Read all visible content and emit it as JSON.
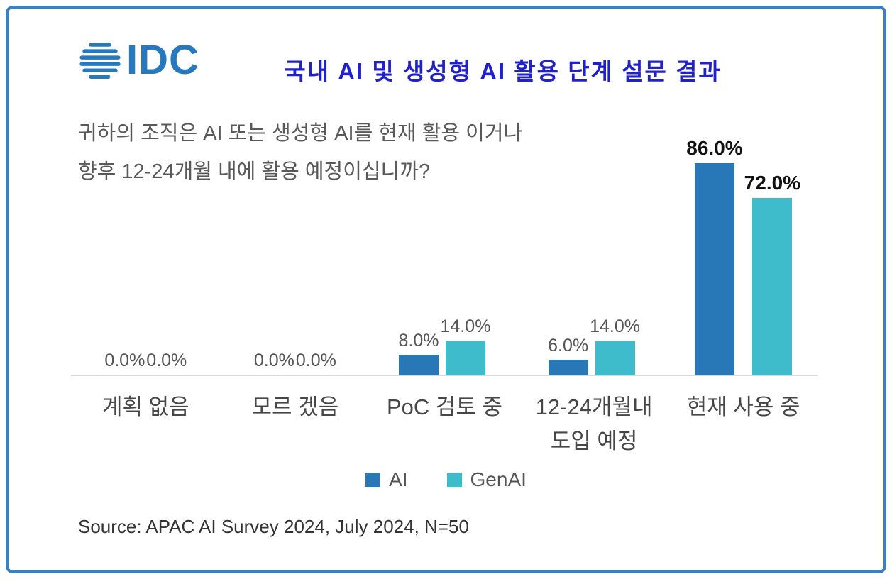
{
  "header": {
    "logo_text": "IDC",
    "title": "국내 AI 및 생성형 AI 활용 단계 설문 결과"
  },
  "question": {
    "line1": "귀하의 조직은 AI 또는 생성형 AI를 현재 활용 이거나",
    "line2": "향후 12-24개월 내에 활용 예정이십니까?"
  },
  "chart_data": {
    "type": "bar",
    "categories": [
      "계획 없음",
      "모르 겠음",
      "PoC 검토 중",
      "12-24개월내\n도입 예정",
      "현재 사용 중"
    ],
    "series": [
      {
        "name": "AI",
        "color": "#2878b8",
        "values": [
          0.0,
          0.0,
          8.0,
          6.0,
          86.0
        ]
      },
      {
        "name": "GenAI",
        "color": "#3fbccb",
        "values": [
          0.0,
          0.0,
          14.0,
          14.0,
          72.0
        ]
      }
    ],
    "value_suffix": "%",
    "ylim": [
      0,
      100
    ],
    "grid": false,
    "legend_position": "bottom"
  },
  "colors": {
    "border": "#3c80c4",
    "title": "#2121cc",
    "logo": "#2878be"
  },
  "footer": {
    "source": "Source: APAC AI Survey 2024, July 2024, N=50"
  }
}
